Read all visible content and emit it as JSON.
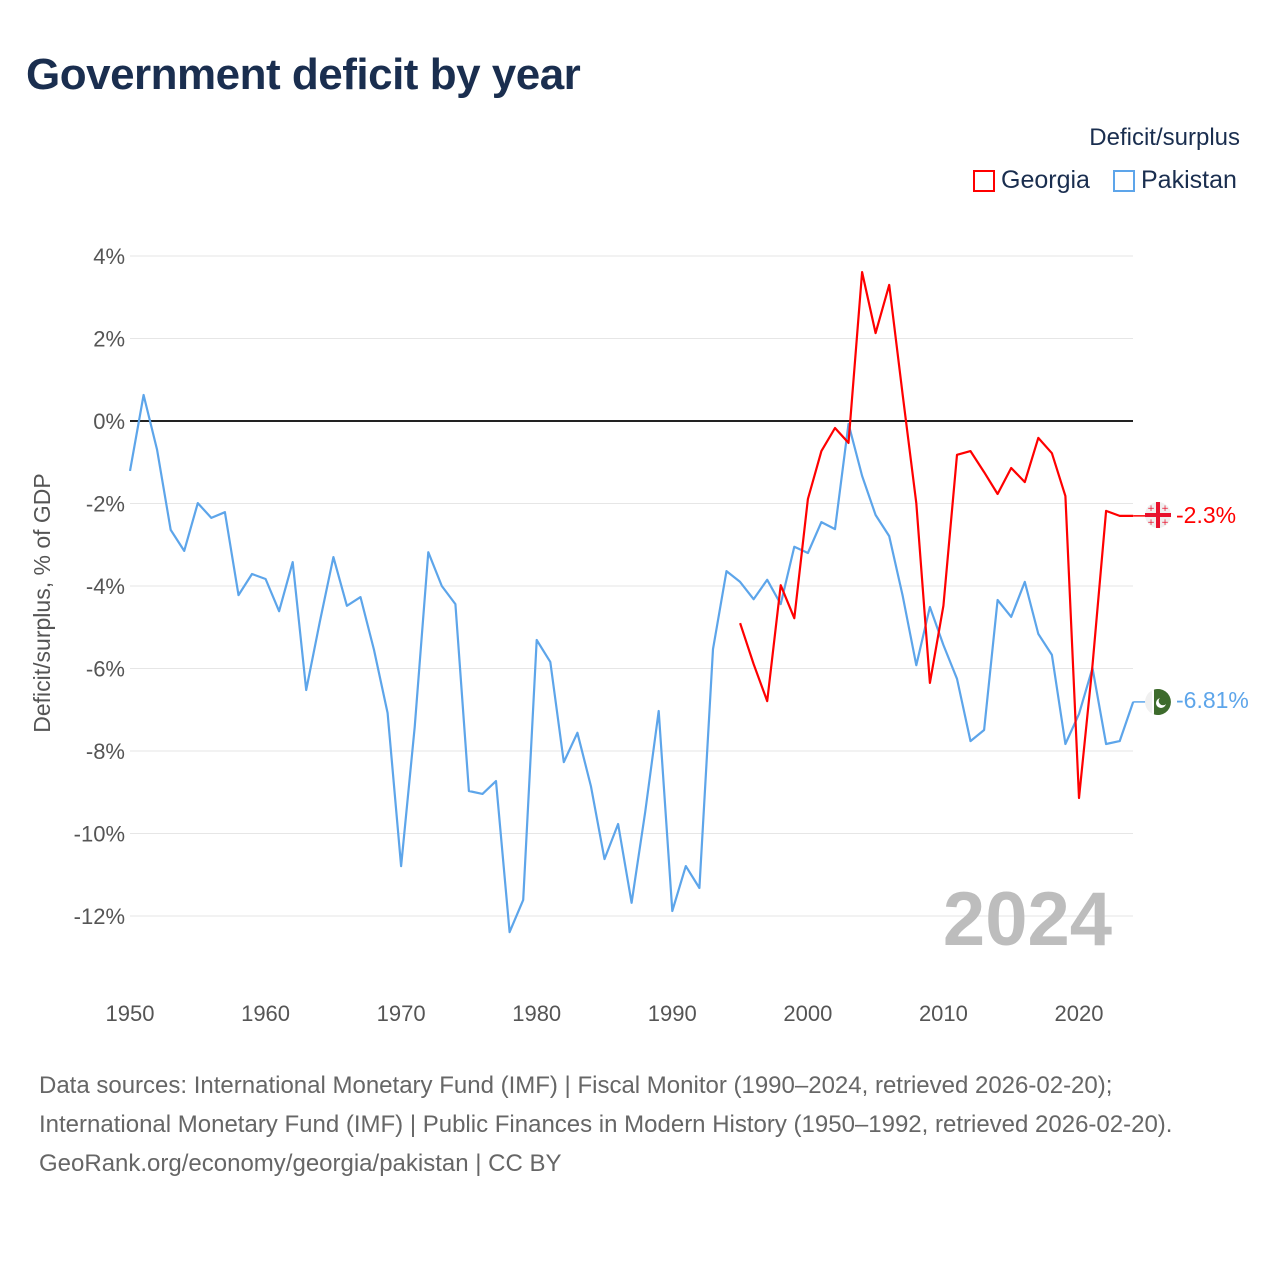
{
  "title": "Government deficit by year",
  "legend": {
    "title": "Deficit/surplus",
    "items": [
      "Georgia",
      "Pakistan"
    ]
  },
  "colors": {
    "Georgia": "#ff0000",
    "Pakistan": "#5da5ea",
    "zero_line": "#222222",
    "grid": "#e6e6e6",
    "year_watermark": "#bdbdbd"
  },
  "year_watermark": "2024",
  "end_labels": {
    "Georgia": "-2.3%",
    "Pakistan": "-6.81%"
  },
  "icons": {
    "Georgia": "georgia-flag-icon",
    "Pakistan": "pakistan-flag-icon"
  },
  "chart_data": {
    "type": "line",
    "title": "Government deficit by year",
    "xlabel": "",
    "ylabel": "Deficit/surplus, % of GDP",
    "xlim": [
      1950,
      2024
    ],
    "ylim": [
      -12,
      4
    ],
    "yticks": [
      4,
      2,
      0,
      -2,
      -4,
      -6,
      -8,
      -10,
      -12
    ],
    "ytick_labels": [
      "4%",
      "2%",
      "0%",
      "-2%",
      "-4%",
      "-6%",
      "-8%",
      "-10%",
      "-12%"
    ],
    "xticks": [
      1950,
      1960,
      1970,
      1980,
      1990,
      2000,
      2010,
      2020
    ],
    "xtick_labels": [
      "1950",
      "1960",
      "1970",
      "1980",
      "1990",
      "2000",
      "2010",
      "2020"
    ],
    "grid": true,
    "legend_position": "top-right",
    "series": [
      {
        "name": "Georgia",
        "start_year": 1995,
        "values": [
          -4.9,
          -5.89,
          -6.79,
          -3.98,
          -4.78,
          -1.89,
          -0.73,
          -0.17,
          -0.53,
          3.61,
          2.13,
          3.3,
          0.63,
          -1.99,
          -6.35,
          -4.48,
          -0.82,
          -0.73,
          -1.24,
          -1.77,
          -1.14,
          -1.48,
          -0.41,
          -0.78,
          -1.82,
          -9.14,
          -5.92,
          -2.18,
          -2.3,
          -2.3
        ]
      },
      {
        "name": "Pakistan",
        "start_year": 1950,
        "values": [
          -1.21,
          0.63,
          -0.7,
          -2.64,
          -3.15,
          -1.99,
          -2.35,
          -2.21,
          -4.22,
          -3.71,
          -3.83,
          -4.61,
          -3.42,
          -6.52,
          -4.87,
          -3.3,
          -4.48,
          -4.27,
          -5.55,
          -7.08,
          -10.79,
          -7.42,
          -3.18,
          -4.0,
          -4.44,
          -8.97,
          -9.04,
          -8.73,
          -12.39,
          -11.61,
          -5.31,
          -5.84,
          -8.27,
          -7.56,
          -8.85,
          -10.62,
          -9.77,
          -11.68,
          -9.48,
          -7.03,
          -11.88,
          -10.79,
          -11.32,
          -5.53,
          -3.64,
          -3.9,
          -4.32,
          -3.85,
          -4.44,
          -3.05,
          -3.2,
          -2.45,
          -2.62,
          -0.07,
          -1.33,
          -2.28,
          -2.79,
          -4.24,
          -5.92,
          -4.51,
          -5.43,
          -6.25,
          -7.76,
          -7.49,
          -4.34,
          -4.75,
          -3.9,
          -5.16,
          -5.67,
          -7.83,
          -7.1,
          -5.99,
          -7.83,
          -7.76,
          -6.81
        ]
      }
    ]
  },
  "footer": {
    "sources": "Data sources: International Monetary Fund (IMF) | Fiscal Monitor (1990–2024, retrieved 2026-02-20); International Monetary Fund (IMF) | Public Finances in Modern History (1950–1992, retrieved 2026-02-20).",
    "credit": "GeoRank.org/economy/georgia/pakistan | CC BY"
  }
}
